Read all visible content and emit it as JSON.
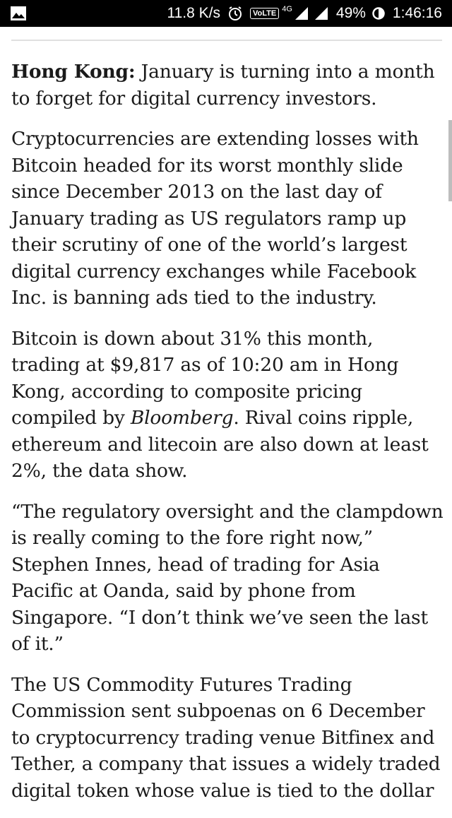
{
  "status_bar": {
    "speed": "11.8 K/s",
    "volte": "VoLTE",
    "network": "4G",
    "battery": "49%",
    "time": "1:46:16"
  },
  "article": {
    "lead_label": "Hong Kong:",
    "lead_text": " January is turning into a month to forget for digital currency investors.",
    "para2": "Cryptocurrencies are extending losses with Bitcoin headed for its worst monthly slide since December 2013 on the last day of January trading as US regulators ramp up their scrutiny of one of the world’s largest digital currency exchanges while Facebook Inc. is banning ads tied to the industry.",
    "para3_before": "Bitcoin is down about 31% this month, trading at $9,817 as of 10:20 am in Hong Kong, according to composite pricing compiled by ",
    "para3_source": "Bloomberg",
    "para3_after": ". Rival coins ripple, ethereum and litecoin are also down at least 2%, the data show.",
    "para4": "“The regulatory oversight and the clampdown is really coming to the fore right now,” Stephen Innes, head of trading for Asia Pacific at Oanda, said by phone from Singapore. “I don’t think we’ve seen the last of it.”",
    "para5": "The US Commodity Futures Trading Commission sent subpoenas on 6 December to cryptocurrency trading venue Bitfinex and Tether, a company that issues a widely traded digital token whose value is tied to the dollar"
  }
}
